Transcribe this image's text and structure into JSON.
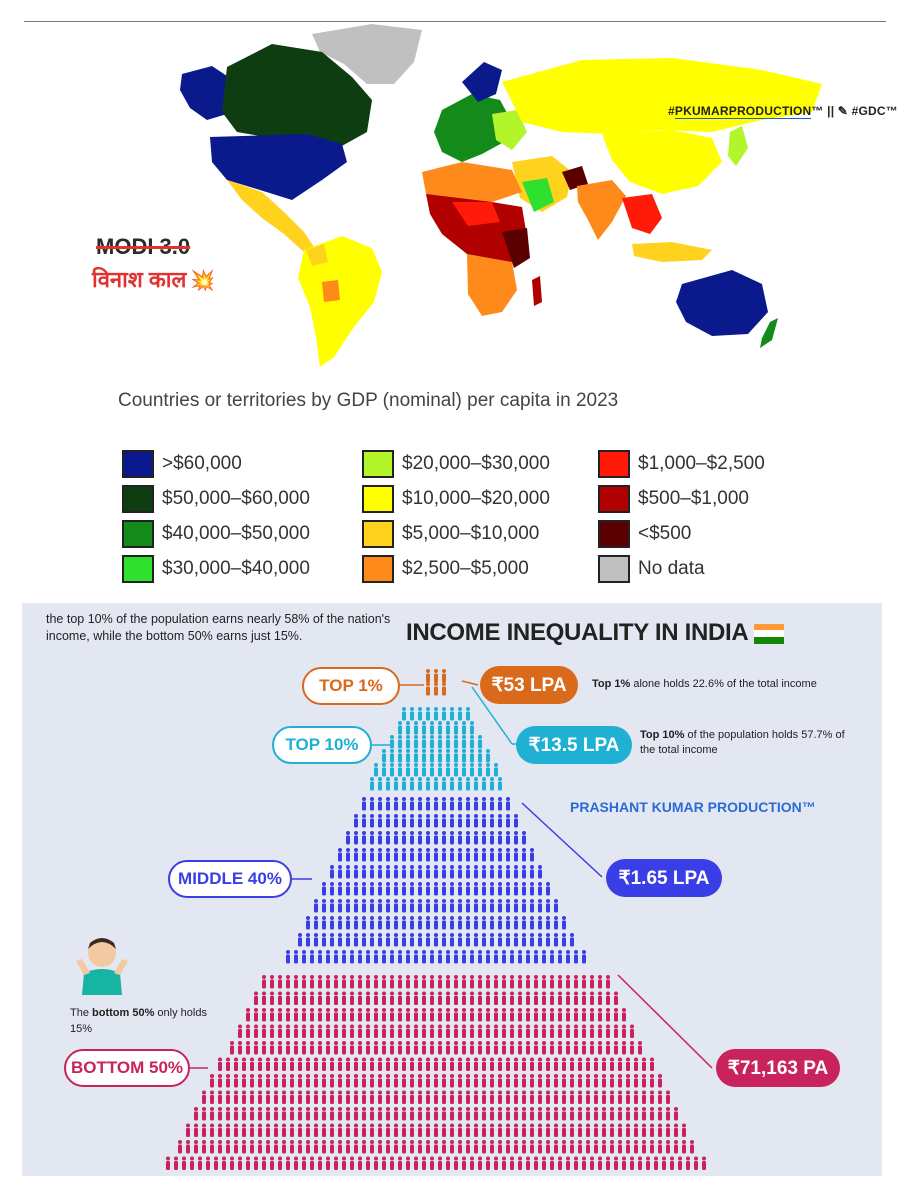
{
  "map": {
    "watermark_prefix": "#",
    "watermark_brand": "PKUMARPRODUCTION",
    "watermark_suffix": "™ || ✎ #GDC™",
    "overlay_strike": "MODI 3.0",
    "overlay_hindi": "विनाश काल",
    "overlay_emoji": "💥",
    "caption": "Countries or territories by GDP (nominal) per capita in 2023"
  },
  "legend": [
    {
      "label": ">$60,000",
      "color": "#0a1a8c"
    },
    {
      "label": "$50,000–$60,000",
      "color": "#0d3d10"
    },
    {
      "label": "$40,000–$50,000",
      "color": "#138a1a"
    },
    {
      "label": "$30,000–$40,000",
      "color": "#2fe02f"
    },
    {
      "label": "$20,000–$30,000",
      "color": "#b2f52a"
    },
    {
      "label": "$10,000–$20,000",
      "color": "#ffff00"
    },
    {
      "label": "$5,000–$10,000",
      "color": "#ffd21e"
    },
    {
      "label": "$2,500–$5,000",
      "color": "#ff8a1c"
    },
    {
      "label": "$1,000–$2,500",
      "color": "#ff1a0a"
    },
    {
      "label": "$500–$1,000",
      "color": "#b00000"
    },
    {
      "label": "<$500",
      "color": "#5a0000"
    },
    {
      "label": "No data",
      "color": "#c0c0c0"
    }
  ],
  "inequality": {
    "intro": "the top 10% of the population earns nearly 58% of the nation's income, while the bottom 50% earns just 15%.",
    "title": "INCOME INEQUALITY IN INDIA",
    "brand": "PRASHANT KUMAR PRODUCTION™",
    "groups": [
      {
        "label": "TOP 1%",
        "income": "₹53 LPA",
        "color": "#d96a1c",
        "note_bold": "Top 1%",
        "note_rest": " alone holds 22.6% of the total income"
      },
      {
        "label": "TOP 10%",
        "income": "₹13.5 LPA",
        "color": "#1fb0d4",
        "note_bold": "Top 10%",
        "note_rest": " of the population holds 57.7% of the total income"
      },
      {
        "label": "MIDDLE 40%",
        "income": "₹1.65 LPA",
        "color": "#3a3ee6"
      },
      {
        "label": "BOTTOM 50%",
        "income": "₹71,163 PA",
        "color": "#c8235c"
      }
    ],
    "bottom_note_pre": "The ",
    "bottom_note_bold": "bottom 50%",
    "bottom_note_rest": " only holds 15%"
  }
}
